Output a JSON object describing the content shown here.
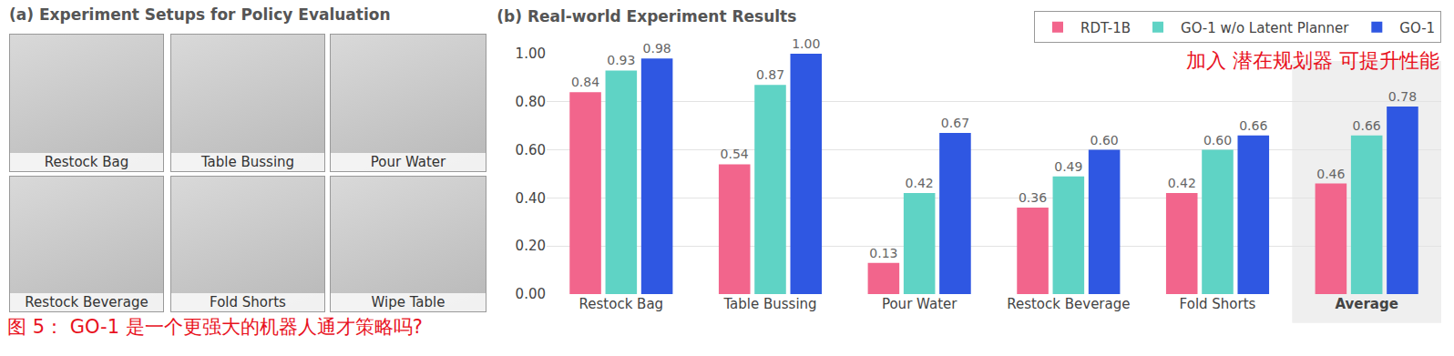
{
  "panel_a": {
    "title": "(a) Experiment Setups for Policy Evaluation",
    "images": [
      "Restock Bag",
      "Table Bussing",
      "Pour Water",
      "Restock Beverage",
      "Fold Shorts",
      "Wipe Table"
    ]
  },
  "caption": "图 5： GO-1 是一个更强大的机器人通才策略吗?",
  "chart_data": {
    "type": "bar",
    "title": "(b) Real-world Experiment Results",
    "categories": [
      "Restock Bag",
      "Table Bussing",
      "Pour Water",
      "Restock Beverage",
      "Fold Shorts",
      "Average"
    ],
    "series": [
      {
        "name": "RDT-1B",
        "color": "#f2658c",
        "values": [
          0.84,
          0.54,
          0.13,
          0.36,
          0.42,
          0.46
        ],
        "value_labels": [
          "0.84",
          "0.54",
          "0.13",
          "0.36",
          "0.42",
          "0.46"
        ]
      },
      {
        "name": "GO-1 w/o Latent Planner",
        "color": "#5fd3c5",
        "values": [
          0.93,
          0.87,
          0.42,
          0.49,
          0.6,
          0.66
        ],
        "value_labels": [
          "0.93",
          "0.87",
          "0.42",
          "0.49",
          "0.60",
          "0.66"
        ]
      },
      {
        "name": "GO-1",
        "color": "#2f57e2",
        "values": [
          0.98,
          1.0,
          0.67,
          0.6,
          0.66,
          0.78
        ],
        "value_labels": [
          "0.98",
          "1.00",
          "0.67",
          "0.60",
          "0.66",
          "0.78"
        ]
      }
    ],
    "ylim": [
      0,
      1.0
    ],
    "yticks": [
      {
        "value": 0,
        "label": "0.00"
      },
      {
        "value": 0.2,
        "label": "0.20"
      },
      {
        "value": 0.4,
        "label": "0.40"
      },
      {
        "value": 0.6,
        "label": "0.60"
      },
      {
        "value": 0.8,
        "label": "0.80"
      },
      {
        "value": 1.0,
        "label": "1.00"
      }
    ],
    "grid": true,
    "legend": "top right",
    "data_labels": true,
    "annotations": [
      "加入 潜在规划器 可提升性能"
    ]
  }
}
